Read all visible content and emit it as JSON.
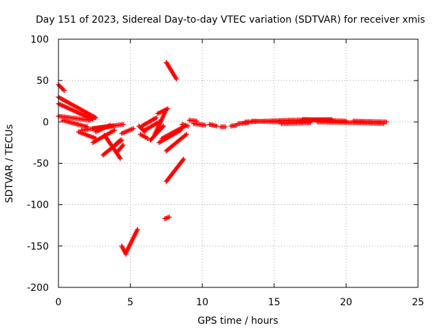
{
  "chart_data": {
    "type": "scatter",
    "title": "Day 151 of 2023, Sidereal Day-to-day VTEC variation (SDTVAR) for receiver xmis",
    "xlabel": "GPS time / hours",
    "ylabel": "SDTVAR / TECUs",
    "xlim": [
      0,
      25
    ],
    "ylim": [
      -200,
      100
    ],
    "xticks": [
      0,
      5,
      10,
      15,
      20,
      25
    ],
    "yticks": [
      -200,
      -150,
      -100,
      -50,
      0,
      50,
      100
    ],
    "grid": true,
    "marker": "plus",
    "color": "#ff0000",
    "segments": [
      {
        "x0": 0.0,
        "x1": 0.4,
        "y0": 45,
        "y1": 38
      },
      {
        "x0": 0.0,
        "x1": 2.6,
        "y0": 30,
        "y1": 5
      },
      {
        "x0": 0.0,
        "x1": 2.4,
        "y0": 22,
        "y1": 3
      },
      {
        "x0": 0.0,
        "x1": 2.2,
        "y0": 7,
        "y1": 2
      },
      {
        "x0": 0.3,
        "x1": 2.0,
        "y0": 2,
        "y1": -6
      },
      {
        "x0": 1.4,
        "x1": 2.6,
        "y0": -12,
        "y1": -20
      },
      {
        "x0": 1.6,
        "x1": 3.8,
        "y0": -10,
        "y1": -5
      },
      {
        "x0": 2.4,
        "x1": 4.5,
        "y0": -8,
        "y1": -3
      },
      {
        "x0": 2.4,
        "x1": 3.9,
        "y0": -25,
        "y1": -10
      },
      {
        "x0": 2.6,
        "x1": 3.6,
        "y0": -12,
        "y1": -4
      },
      {
        "x0": 3.1,
        "x1": 4.4,
        "y0": -40,
        "y1": -22
      },
      {
        "x0": 3.2,
        "x1": 4.3,
        "y0": -16,
        "y1": -44
      },
      {
        "x0": 3.8,
        "x1": 4.3,
        "y0": -30,
        "y1": -22
      },
      {
        "x0": 4.1,
        "x1": 4.5,
        "y0": -36,
        "y1": -28
      },
      {
        "x0": 4.4,
        "x1": 5.2,
        "y0": -14,
        "y1": -8
      },
      {
        "x0": 4.4,
        "x1": 4.7,
        "y0": -150,
        "y1": -160
      },
      {
        "x0": 4.7,
        "x1": 5.5,
        "y0": -158,
        "y1": -130
      },
      {
        "x0": 5.6,
        "x1": 6.0,
        "y0": -5,
        "y1": -12
      },
      {
        "x0": 5.7,
        "x1": 6.2,
        "y0": -15,
        "y1": -20
      },
      {
        "x0": 5.8,
        "x1": 6.8,
        "y0": -5,
        "y1": 5
      },
      {
        "x0": 6.0,
        "x1": 7.0,
        "y0": -10,
        "y1": 0
      },
      {
        "x0": 6.4,
        "x1": 7.3,
        "y0": -22,
        "y1": -5
      },
      {
        "x0": 6.7,
        "x1": 7.5,
        "y0": -15,
        "y1": 15
      },
      {
        "x0": 6.9,
        "x1": 7.6,
        "y0": 10,
        "y1": 16
      },
      {
        "x0": 7.0,
        "x1": 8.5,
        "y0": -25,
        "y1": -10
      },
      {
        "x0": 7.2,
        "x1": 8.8,
        "y0": -20,
        "y1": -5
      },
      {
        "x0": 7.5,
        "x1": 8.9,
        "y0": -35,
        "y1": -15
      },
      {
        "x0": 7.5,
        "x1": 8.2,
        "y0": 72,
        "y1": 52
      },
      {
        "x0": 7.5,
        "x1": 8.7,
        "y0": -72,
        "y1": -45
      },
      {
        "x0": 7.4,
        "x1": 7.7,
        "y0": -117,
        "y1": -115
      },
      {
        "x0": 8.6,
        "x1": 9.0,
        "y0": -3,
        "y1": -5
      },
      {
        "x0": 9.1,
        "x1": 9.6,
        "y0": 2,
        "y1": 1
      },
      {
        "x0": 9.4,
        "x1": 10.2,
        "y0": -2,
        "y1": -4
      },
      {
        "x0": 10.5,
        "x1": 11.0,
        "y0": -3,
        "y1": -5
      },
      {
        "x0": 11.3,
        "x1": 11.6,
        "y0": -6,
        "y1": -6
      },
      {
        "x0": 12.0,
        "x1": 12.4,
        "y0": -5,
        "y1": -4
      },
      {
        "x0": 12.5,
        "x1": 13.2,
        "y0": -2,
        "y1": -1
      },
      {
        "x0": 13.0,
        "x1": 16.0,
        "y0": 0,
        "y1": 2
      },
      {
        "x0": 13.5,
        "x1": 15.5,
        "y0": 1,
        "y1": 0
      },
      {
        "x0": 15.5,
        "x1": 17.5,
        "y0": -2,
        "y1": -1
      },
      {
        "x0": 16.0,
        "x1": 19.0,
        "y0": 2,
        "y1": 3
      },
      {
        "x0": 17.0,
        "x1": 20.0,
        "y0": 3,
        "y1": 1
      },
      {
        "x0": 18.0,
        "x1": 21.0,
        "y0": 0,
        "y1": -1
      },
      {
        "x0": 20.5,
        "x1": 22.8,
        "y0": 1,
        "y1": 0
      },
      {
        "x0": 21.0,
        "x1": 22.6,
        "y0": -1,
        "y1": -2
      }
    ]
  }
}
